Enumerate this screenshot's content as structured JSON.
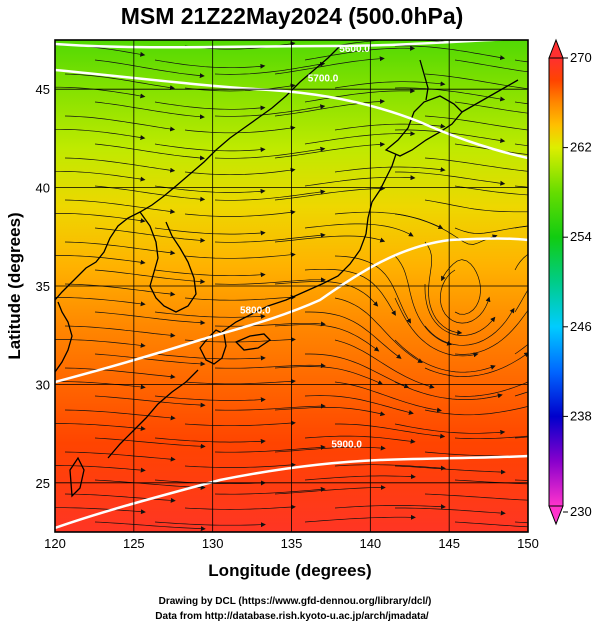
{
  "title": "MSM 21Z22May2024 (500.0hPa)",
  "credit_line1": "Drawing by DCL (https://www.gfd-dennou.org/library/dcl/)",
  "credit_line2": "Data from http://database.rish.kyoto-u.ac.jp/arch/jmadata/",
  "chart_data": {
    "type": "heatmap",
    "title": "MSM 21Z22May2024 (500.0hPa)",
    "xlabel": "Longitude (degrees)",
    "ylabel": "Latitude  (degrees)",
    "xlim": [
      120,
      150
    ],
    "ylim": [
      22.5,
      47.5
    ],
    "x_ticks": [
      "120",
      "125",
      "130",
      "135",
      "140",
      "145",
      "150"
    ],
    "y_ticks": [
      "25",
      "30",
      "35",
      "40",
      "45"
    ],
    "grid": true,
    "colorbar": {
      "min": 230,
      "max": 270,
      "tick_labels": [
        "270",
        "262",
        "254",
        "246",
        "238",
        "230"
      ],
      "placement": "right"
    },
    "contours": [
      {
        "label": "5600.0",
        "lon": 139.0,
        "lat": 46.9
      },
      {
        "label": "5700.0",
        "lon": 137.0,
        "lat": 45.4
      },
      {
        "label": "5800.0",
        "lon": 132.7,
        "lat": 33.6
      },
      {
        "label": "5900.0",
        "lon": 138.5,
        "lat": 26.8
      }
    ],
    "temperature_bands": [
      {
        "lat": 47.5,
        "value": 257
      },
      {
        "lat": 45.0,
        "value": 259
      },
      {
        "lat": 42.0,
        "value": 261
      },
      {
        "lat": 39.0,
        "value": 263
      },
      {
        "lat": 36.0,
        "value": 264.5
      },
      {
        "lat": 33.0,
        "value": 266
      },
      {
        "lat": 30.0,
        "value": 267
      },
      {
        "lat": 27.0,
        "value": 268
      },
      {
        "lat": 24.5,
        "value": 268.8
      },
      {
        "lat": 22.5,
        "value": 269.5
      }
    ],
    "colors": {
      "230": "#ff33cc",
      "234": "#8800cc",
      "238": "#0000cc",
      "242": "#0066ff",
      "246": "#00ccff",
      "250": "#00cc88",
      "254": "#11cc11",
      "258": "#66dd00",
      "262": "#ddee00",
      "264": "#ffc000",
      "266": "#ff8800",
      "268": "#ff4400",
      "270": "#ff3030"
    }
  }
}
